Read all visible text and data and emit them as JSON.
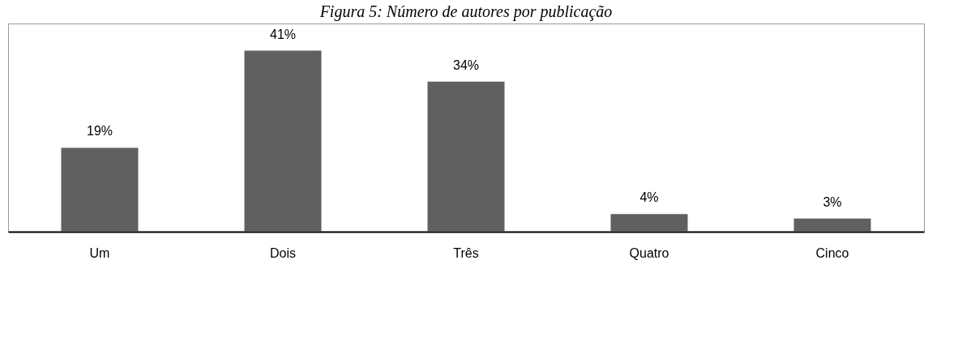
{
  "chart_data": {
    "type": "bar",
    "title": "Figura 5: Número de autores por publicação",
    "categories": [
      "Um",
      "Dois",
      "Três",
      "Quatro",
      "Cinco"
    ],
    "values": [
      19,
      41,
      34,
      4,
      3
    ],
    "value_labels": [
      "19%",
      "41%",
      "34%",
      "4%",
      "3%"
    ],
    "color": "#606060",
    "grid": false
  }
}
